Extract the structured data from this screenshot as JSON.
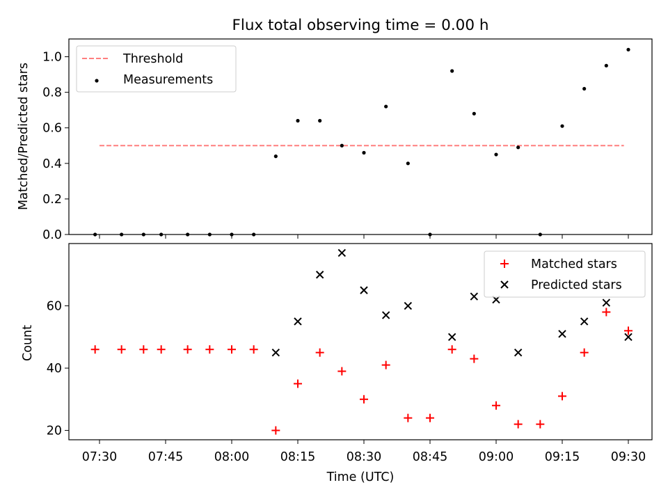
{
  "chart_data": [
    {
      "type": "scatter",
      "title": "Flux total observing time = 0.00 h",
      "xlabel": "",
      "ylabel": "Matched/Predicted stars",
      "ylim": [
        0,
        1.1
      ],
      "yticks": [
        "0.0",
        "0.2",
        "0.4",
        "0.6",
        "0.8",
        "1.0"
      ],
      "ytick_values": [
        0,
        0.2,
        0.4,
        0.6,
        0.8,
        1.0
      ],
      "legend": "upper-left",
      "series": [
        {
          "name": "Threshold",
          "kind": "dashed-line",
          "color": "#ff7f7f",
          "x": [
            "07:30",
            "09:29"
          ],
          "y": [
            0.5,
            0.5
          ]
        },
        {
          "name": "Measurements",
          "kind": "dot",
          "color": "#000000",
          "x": [
            "07:29",
            "07:35",
            "07:40",
            "07:44",
            "07:50",
            "07:55",
            "08:00",
            "08:05",
            "08:10",
            "08:15",
            "08:20",
            "08:25",
            "08:30",
            "08:35",
            "08:40",
            "08:45",
            "08:50",
            "08:55",
            "09:00",
            "09:05",
            "09:10",
            "09:15",
            "09:20",
            "09:25",
            "09:30"
          ],
          "y": [
            0,
            0,
            0,
            0,
            0,
            0,
            0,
            0,
            0.44,
            0.64,
            0.64,
            0.5,
            0.46,
            0.72,
            0.4,
            0,
            0.92,
            0.68,
            0.45,
            0.49,
            0,
            0.61,
            0.82,
            0.95,
            1.04
          ]
        }
      ]
    },
    {
      "type": "scatter",
      "title": "",
      "xlabel": "Time (UTC)",
      "ylabel": "Count",
      "ylim": [
        17,
        80
      ],
      "yticks": [
        "20",
        "40",
        "60"
      ],
      "ytick_values": [
        20,
        40,
        60
      ],
      "xticks": [
        "07:30",
        "07:45",
        "08:00",
        "08:15",
        "08:30",
        "08:45",
        "09:00",
        "09:15",
        "09:30"
      ],
      "legend": "upper-right",
      "series": [
        {
          "name": "Matched stars",
          "kind": "plus",
          "color": "#ff0000",
          "x": [
            "07:29",
            "07:35",
            "07:40",
            "07:44",
            "07:50",
            "07:55",
            "08:00",
            "08:05",
            "08:10",
            "08:15",
            "08:20",
            "08:25",
            "08:30",
            "08:35",
            "08:40",
            "08:45",
            "08:50",
            "08:55",
            "09:00",
            "09:05",
            "09:10",
            "09:15",
            "09:20",
            "09:25",
            "09:30"
          ],
          "y": [
            46,
            46,
            46,
            46,
            46,
            46,
            46,
            46,
            20,
            35,
            45,
            39,
            30,
            41,
            24,
            24,
            46,
            43,
            28,
            22,
            22,
            31,
            45,
            58,
            52
          ]
        },
        {
          "name": "Predicted stars",
          "kind": "cross",
          "color": "#000000",
          "x": [
            "08:10",
            "08:15",
            "08:20",
            "08:25",
            "08:30",
            "08:35",
            "08:40",
            "08:50",
            "08:55",
            "09:00",
            "09:05",
            "09:15",
            "09:20",
            "09:25",
            "09:30"
          ],
          "y": [
            45,
            55,
            70,
            77,
            65,
            57,
            60,
            50,
            63,
            62,
            45,
            51,
            55,
            61,
            50
          ]
        }
      ]
    }
  ]
}
